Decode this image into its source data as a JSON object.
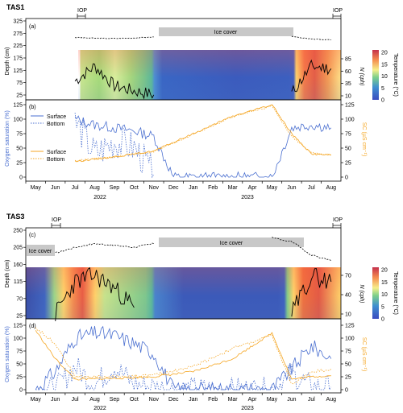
{
  "months": [
    "May",
    "Jun",
    "Jul",
    "Aug",
    "Sep",
    "Oct",
    "Nov",
    "Dec",
    "Jan",
    "Feb",
    "Mar",
    "Apr",
    "May",
    "Jun",
    "Jul",
    "Aug"
  ],
  "years": [
    "2022",
    "2023"
  ],
  "colorbar_ticks": [
    "0",
    "5",
    "10",
    "15",
    "20"
  ],
  "colors": {
    "surface_oxygen": "#4a6fd0",
    "specific_conductance": "#f5a623",
    "ice_box": "#c8c8c8",
    "buoyancy_line": "#000000"
  },
  "panels": {
    "tas1": {
      "site": "TAS1",
      "iop_label": "IOP",
      "top": {
        "label": "(a)",
        "ylabel": "Depth (cm)",
        "yticks": [
          "25",
          "75",
          "125",
          "175",
          "225",
          "275",
          "325"
        ],
        "right_ticks": [
          "10",
          "35",
          "60",
          "85"
        ],
        "right_label": "N (cph)",
        "colorbar_label": "Temperature (°C)",
        "ice_label": "Ice cover"
      },
      "bottom": {
        "label": "(b)",
        "ylabel": "Oxygen saturation (%)",
        "yticks": [
          "0",
          "25",
          "50",
          "75",
          "100",
          "125"
        ],
        "right_ticks": [
          "0",
          "25",
          "50",
          "75",
          "100",
          "125"
        ],
        "right_label": "SC (µS cm⁻¹)",
        "legend_oxygen": [
          "Surface",
          "Bottom"
        ],
        "legend_sc": [
          "Surface",
          "Bottom"
        ]
      }
    },
    "tas3": {
      "site": "TAS3",
      "iop_label": "IOP",
      "top": {
        "label": "(c)",
        "ylabel": "Depth (cm)",
        "yticks": [
          "25",
          "70",
          "115",
          "160",
          "205",
          "250"
        ],
        "right_ticks": [
          "10",
          "40",
          "70"
        ],
        "right_label": "N (cph)",
        "colorbar_label": "Temperature (°C)",
        "ice_label": "Ice cover",
        "ice_label_left": "Ice cover"
      },
      "bottom": {
        "label": "(d)",
        "ylabel": "Oxygen saturation (%)",
        "yticks": [
          "0",
          "25",
          "50",
          "75",
          "100",
          "125"
        ],
        "right_ticks": [
          "0",
          "25",
          "50",
          "75",
          "100",
          "125"
        ],
        "right_label": "SC (µS cm⁻¹)"
      }
    }
  },
  "chart_data": [
    {
      "type": "line",
      "panel": "(a)",
      "x_unit": "month",
      "water_level_cm": {
        "x": [
          "Jul 2022",
          "Aug 2022",
          "Sep 2022",
          "Oct 2022",
          "Nov 2022",
          "Jun 2023",
          "Jul 2023",
          "Aug 2023"
        ],
        "values": [
          258,
          255,
          254,
          256,
          260,
          262,
          252,
          248
        ]
      },
      "ice_cover": [
        "Nov 2022",
        "Jun 2023"
      ],
      "buoyancy_frequency_N_cph": {
        "x": [
          "Jul 2022",
          "Aug 2022",
          "Sep 2022",
          "Oct 2022",
          "Nov 2022",
          "Jun 2023",
          "Jul 2023",
          "Aug 2023"
        ],
        "values": [
          40,
          70,
          30,
          20,
          12,
          15,
          70,
          65
        ]
      }
    },
    {
      "type": "line",
      "panel": "(b)",
      "series": [
        {
          "name": "Surface",
          "x": [
            "Jul 2022",
            "Aug 2022",
            "Sep 2022",
            "Oct 2022",
            "Nov 2022",
            "Dec 2022",
            "May 2023",
            "Jun 2023",
            "Jul 2023",
            "Aug 2023"
          ],
          "values": [
            100,
            90,
            85,
            80,
            70,
            0,
            0,
            85,
            90,
            85
          ]
        },
        {
          "name": "Bottom",
          "x": [
            "Jul 2022",
            "Aug 2022",
            "Sep 2022",
            "Oct 2022",
            "Nov 2022"
          ],
          "values": [
            95,
            40,
            60,
            50,
            5
          ]
        },
        {
          "name": "Surface",
          "x": [
            "Jul 2022",
            "Sep 2022",
            "Nov 2022",
            "Jan 2023",
            "Mar 2023",
            "May 2023",
            "Jun 2023",
            "Jul 2023",
            "Aug 2023"
          ],
          "values": [
            27,
            35,
            45,
            75,
            105,
            125,
            75,
            40,
            38
          ]
        },
        {
          "name": "Bottom",
          "x": [
            "Jul 2022",
            "Sep 2022",
            "Nov 2022",
            "Jan 2023",
            "Mar 2023",
            "May 2023",
            "Jun 2023",
            "Jul 2023",
            "Aug 2023"
          ],
          "values": [
            28,
            35,
            44,
            74,
            104,
            123,
            70,
            42,
            38
          ]
        }
      ]
    },
    {
      "type": "line",
      "panel": "(c)",
      "water_level_cm": {
        "x": [
          "Jun 2022",
          "Jul 2022",
          "Aug 2022",
          "Sep 2022",
          "Oct 2022",
          "Nov 2022",
          "May 2023",
          "Jun 2023",
          "Jul 2023",
          "Aug 2023"
        ],
        "values": [
          190,
          205,
          215,
          210,
          205,
          215,
          230,
          220,
          185,
          170
        ]
      },
      "ice_cover": [
        [
          "May 2022",
          "Jun 2022"
        ],
        [
          "Nov 2022",
          "May 2023"
        ]
      ],
      "buoyancy_frequency_N_cph": {
        "x": [
          "Jun 2022",
          "Jul 2022",
          "Aug 2022",
          "Sep 2022",
          "Oct 2022",
          "Jun 2023",
          "Jul 2023",
          "Aug 2023"
        ],
        "values": [
          10,
          60,
          70,
          50,
          20,
          10,
          70,
          60
        ]
      }
    },
    {
      "type": "line",
      "panel": "(d)",
      "series": [
        {
          "name": "Surface",
          "x": [
            "May 2022",
            "Jun 2022",
            "Jul 2022",
            "Aug 2022",
            "Sep 2022",
            "Oct 2022",
            "Nov 2022",
            "Dec 2022",
            "May 2023",
            "Jun 2023",
            "Jul 2023",
            "Aug 2023"
          ],
          "values": [
            0,
            35,
            100,
            110,
            105,
            90,
            70,
            0,
            0,
            40,
            85,
            60
          ]
        },
        {
          "name": "Bottom",
          "x": [
            "May 2022",
            "Jun 2022",
            "Jul 2022",
            "Aug 2022",
            "Sep 2022",
            "Oct 2022",
            "Nov 2022",
            "Dec 2022",
            "May 2023",
            "Jun 2023",
            "Jul 2023",
            "Aug 2023"
          ],
          "values": [
            0,
            0,
            45,
            10,
            45,
            10,
            5,
            0,
            0,
            30,
            5,
            5
          ]
        },
        {
          "name": "Surface",
          "x": [
            "May 2022",
            "Jun 2022",
            "Jul 2022",
            "Sep 2022",
            "Nov 2022",
            "Jan 2023",
            "Mar 2023",
            "May 2023",
            "Jun 2023",
            "Jul 2023",
            "Aug 2023"
          ],
          "values": [
            115,
            60,
            20,
            22,
            25,
            35,
            60,
            110,
            20,
            25,
            27
          ]
        },
        {
          "name": "Bottom",
          "x": [
            "May 2022",
            "Jun 2022",
            "Jul 2022",
            "Sep 2022",
            "Nov 2022",
            "Jan 2023",
            "Mar 2023",
            "May 2023",
            "Jun 2023",
            "Jul 2023",
            "Aug 2023"
          ],
          "values": [
            120,
            90,
            25,
            25,
            28,
            45,
            80,
            105,
            10,
            35,
            40
          ]
        }
      ]
    }
  ]
}
